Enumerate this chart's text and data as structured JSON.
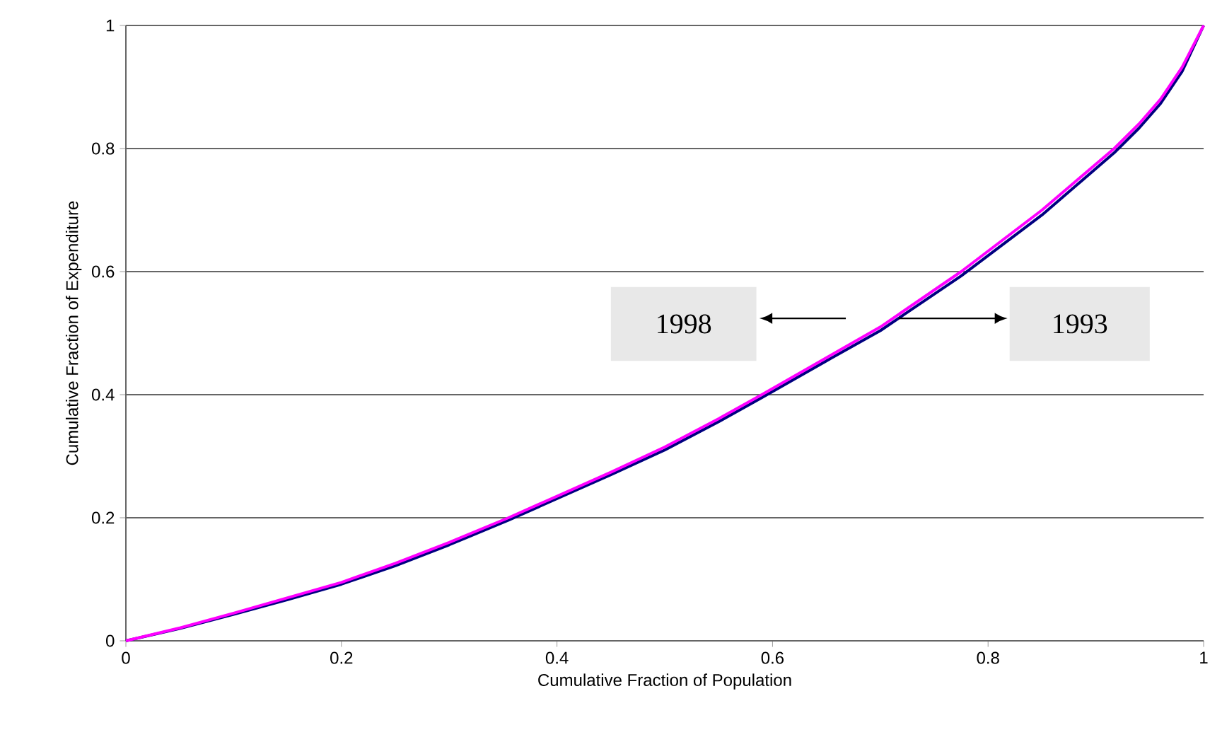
{
  "chart_data": {
    "type": "line",
    "xlabel": "Cumulative Fraction of Population",
    "ylabel": "Cumulative Fraction of Expenditure",
    "xlim": [
      0,
      1
    ],
    "ylim": [
      0,
      1
    ],
    "xticks": [
      0,
      0.2,
      0.4,
      0.6,
      0.8,
      1
    ],
    "yticks": [
      0,
      0.2,
      0.4,
      0.6,
      0.8,
      1
    ],
    "grid": "y",
    "annotations": [
      "1998",
      "1993"
    ],
    "x": [
      0,
      0.05,
      0.1,
      0.15,
      0.2,
      0.25,
      0.3,
      0.355,
      0.4,
      0.45,
      0.5,
      0.55,
      0.59,
      0.65,
      0.7,
      0.775,
      0.85,
      0.917,
      0.94,
      0.96,
      0.98,
      1
    ],
    "series": [
      {
        "color": "#000080",
        "values": [
          0,
          0.02,
          0.043,
          0.067,
          0.092,
          0.122,
          0.156,
          0.196,
          0.231,
          0.27,
          0.31,
          0.356,
          0.395,
          0.455,
          0.504,
          0.593,
          0.692,
          0.793,
          0.833,
          0.873,
          0.925,
          1
        ]
      },
      {
        "color": "#ff00ff",
        "values": [
          0,
          0.021,
          0.045,
          0.07,
          0.095,
          0.126,
          0.16,
          0.2,
          0.235,
          0.274,
          0.315,
          0.361,
          0.4,
          0.46,
          0.51,
          0.6,
          0.7,
          0.8,
          0.84,
          0.88,
          0.932,
          1
        ]
      }
    ]
  }
}
